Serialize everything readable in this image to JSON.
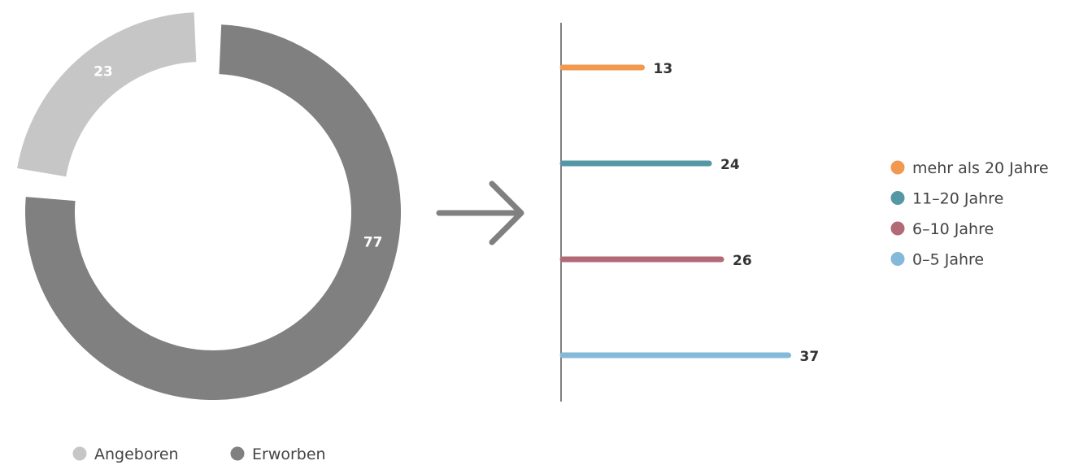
{
  "chart_data": [
    {
      "type": "pie",
      "variant": "donut",
      "categories": [
        "Angeboren",
        "Erworben"
      ],
      "values": [
        23,
        77
      ],
      "colors": [
        "#c6c6c6",
        "#808080"
      ],
      "exploded": "Angeboren",
      "legend_position": "bottom"
    },
    {
      "type": "bar",
      "orientation": "horizontal",
      "categories": [
        "mehr als 20 Jahre",
        "11–20 Jahre",
        "6–10 Jahre",
        "0–5 Jahre"
      ],
      "values": [
        13,
        24,
        26,
        37
      ],
      "colors": [
        "#f1994e",
        "#5597a4",
        "#b26a76",
        "#84b9da"
      ],
      "legend_position": "right",
      "grid": false
    }
  ],
  "connector": {
    "icon": "arrow-right-icon",
    "color": "#808080"
  }
}
